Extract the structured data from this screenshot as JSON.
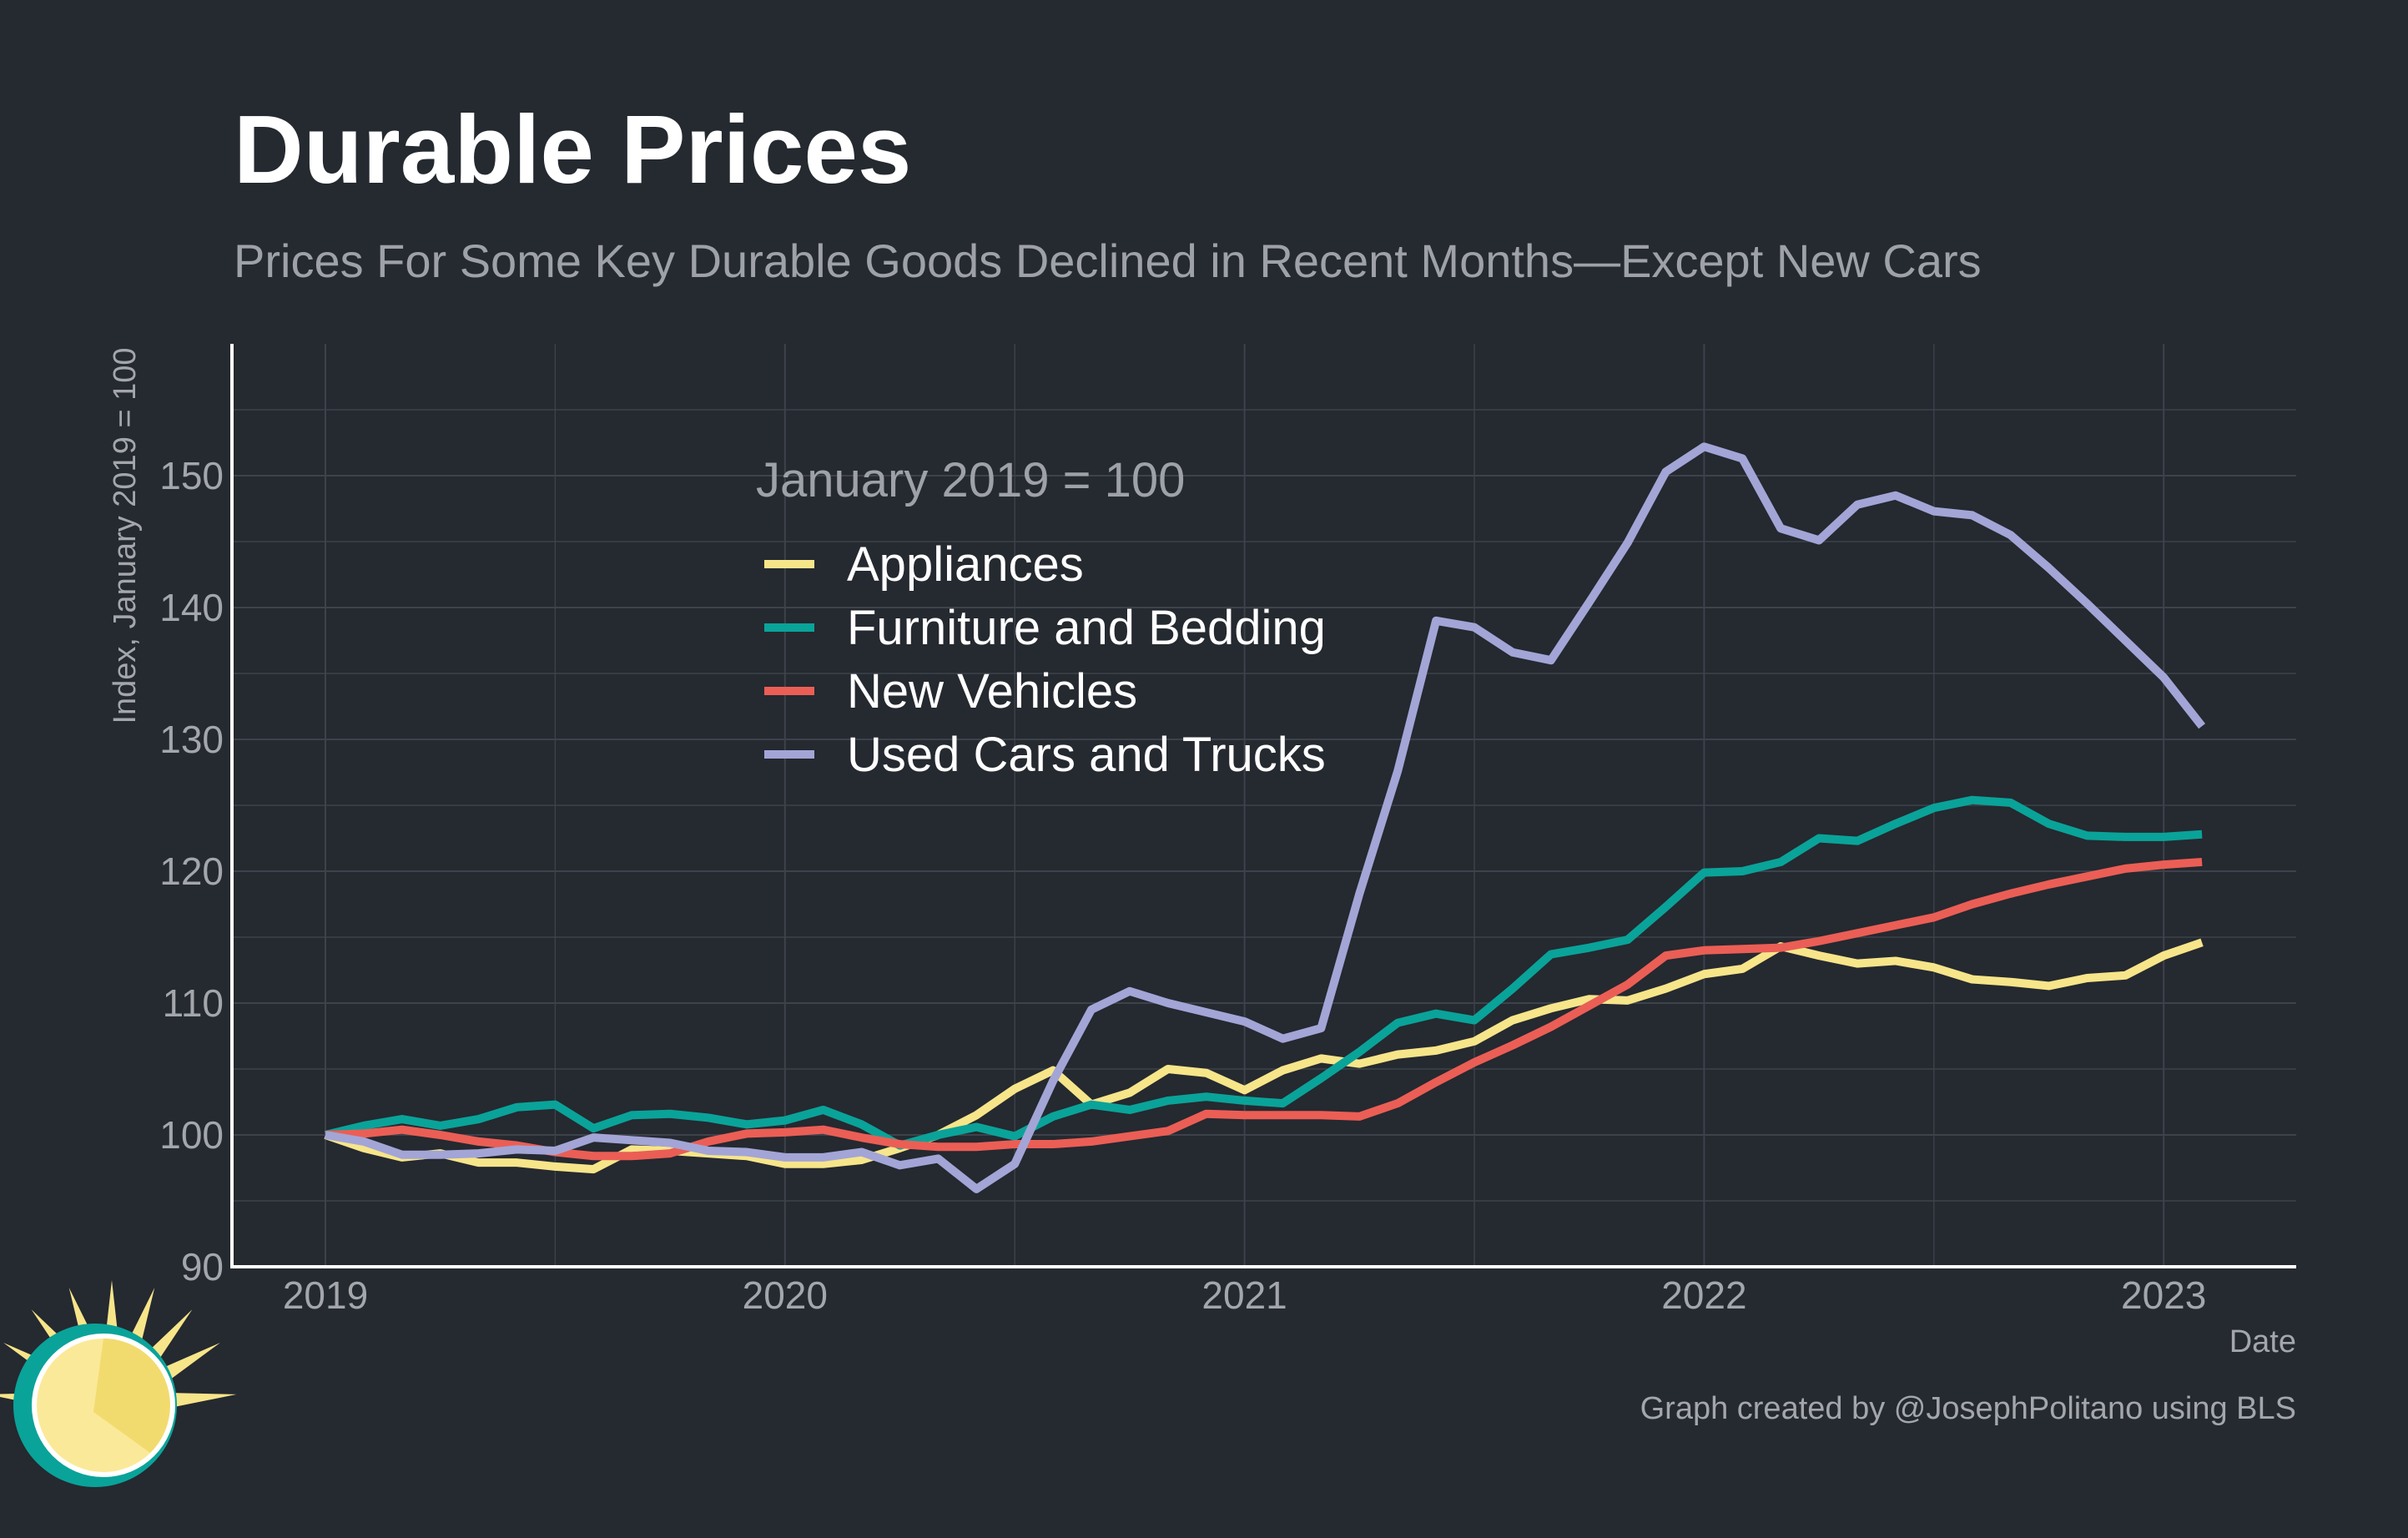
{
  "title": "Durable Prices",
  "subtitle": "Prices For Some Key Durable Goods Declined in Recent Months—Except New Cars",
  "caption": "Graph created by @JosephPolitano using BLS",
  "colors": {
    "background": "#252930",
    "grid": "#3d424b",
    "axis": "#ffffff",
    "sun_yellow": "#f7e58a",
    "sun_teal": "#0aa399"
  },
  "chart_data": {
    "type": "line",
    "title": "Durable Prices",
    "subtitle": "Prices For Some Key Durable Goods Declined in Recent Months—Except New Cars",
    "xlabel": "Date",
    "ylabel": "Index, January 2019 = 100",
    "x_start": "2019-01",
    "x_end": "2023-02",
    "x_ticks": [
      "2019",
      "2020",
      "2021",
      "2022",
      "2023"
    ],
    "ylim": [
      90,
      160
    ],
    "y_ticks": [
      90,
      100,
      110,
      120,
      130,
      140,
      150
    ],
    "grid": true,
    "legend_title": "January 2019 = 100",
    "legend_position": "top-center",
    "x": [
      "2019-01",
      "2019-02",
      "2019-03",
      "2019-04",
      "2019-05",
      "2019-06",
      "2019-07",
      "2019-08",
      "2019-09",
      "2019-10",
      "2019-11",
      "2019-12",
      "2020-01",
      "2020-02",
      "2020-03",
      "2020-04",
      "2020-05",
      "2020-06",
      "2020-07",
      "2020-08",
      "2020-09",
      "2020-10",
      "2020-11",
      "2020-12",
      "2021-01",
      "2021-02",
      "2021-03",
      "2021-04",
      "2021-05",
      "2021-06",
      "2021-07",
      "2021-08",
      "2021-09",
      "2021-10",
      "2021-11",
      "2021-12",
      "2022-01",
      "2022-02",
      "2022-03",
      "2022-04",
      "2022-05",
      "2022-06",
      "2022-07",
      "2022-08",
      "2022-09",
      "2022-10",
      "2022-11",
      "2022-12",
      "2023-01",
      "2023-02"
    ],
    "series": [
      {
        "name": "Appliances",
        "color": "#f7e58a",
        "values": [
          100,
          99,
          98.3,
          98.6,
          97.9,
          97.9,
          97.6,
          97.4,
          98.9,
          98.8,
          98.6,
          98.4,
          97.8,
          97.8,
          98.1,
          99,
          100,
          101.5,
          103.5,
          104.9,
          102.3,
          103.2,
          105,
          104.7,
          103.4,
          104.9,
          105.8,
          105.4,
          106.1,
          106.4,
          107.1,
          108.7,
          109.6,
          110.3,
          110.2,
          111.1,
          112.2,
          112.6,
          114.3,
          113.6,
          113,
          113.2,
          112.7,
          111.8,
          111.6,
          111.3,
          111.9,
          112.1,
          113.6,
          114.6
        ]
      },
      {
        "name": "Furniture and Bedding",
        "color": "#0aa399",
        "values": [
          100,
          100.7,
          101.2,
          100.7,
          101.2,
          102.1,
          102.3,
          100.5,
          101.5,
          101.6,
          101.3,
          100.8,
          101.1,
          101.9,
          100.8,
          99.2,
          100,
          100.6,
          99.9,
          101.4,
          102.3,
          101.9,
          102.6,
          102.9,
          102.6,
          102.4,
          104.3,
          106.3,
          108.5,
          109.2,
          108.7,
          111.1,
          113.7,
          114.2,
          114.8,
          117.3,
          119.9,
          120,
          120.7,
          122.5,
          122.3,
          123.6,
          124.8,
          125.4,
          125.2,
          123.6,
          122.7,
          122.6,
          122.6,
          122.8
        ]
      },
      {
        "name": "New Vehicles",
        "color": "#eb5e55",
        "values": [
          100,
          100.1,
          100.4,
          100,
          99.5,
          99.2,
          98.7,
          98.4,
          98.4,
          98.6,
          99.5,
          100.1,
          100.2,
          100.4,
          99.8,
          99.3,
          99.1,
          99.1,
          99.3,
          99.3,
          99.5,
          99.9,
          100.3,
          101.6,
          101.5,
          101.5,
          101.5,
          101.4,
          102.4,
          104,
          105.5,
          106.8,
          108.2,
          109.8,
          111.4,
          113.6,
          114,
          114.1,
          114.2,
          114.7,
          115.3,
          115.9,
          116.5,
          117.5,
          118.3,
          119,
          119.6,
          120.2,
          120.5,
          120.7
        ]
      },
      {
        "name": "Used Cars and Trucks",
        "color": "#a3a5d6",
        "values": [
          100,
          99.5,
          98.5,
          98.5,
          98.6,
          98.9,
          98.8,
          99.8,
          99.6,
          99.4,
          98.8,
          98.7,
          98.3,
          98.3,
          98.7,
          97.7,
          98.2,
          95.9,
          97.8,
          104.1,
          109.5,
          110.9,
          110,
          109.3,
          108.6,
          107.3,
          108.1,
          118.3,
          127.6,
          139,
          138.5,
          136.6,
          136,
          140.4,
          144.9,
          150.3,
          152.2,
          151.3,
          146,
          145.1,
          147.8,
          148.5,
          147.3,
          147,
          145.5,
          143,
          140.3,
          137.5,
          134.7,
          131
        ]
      }
    ]
  }
}
